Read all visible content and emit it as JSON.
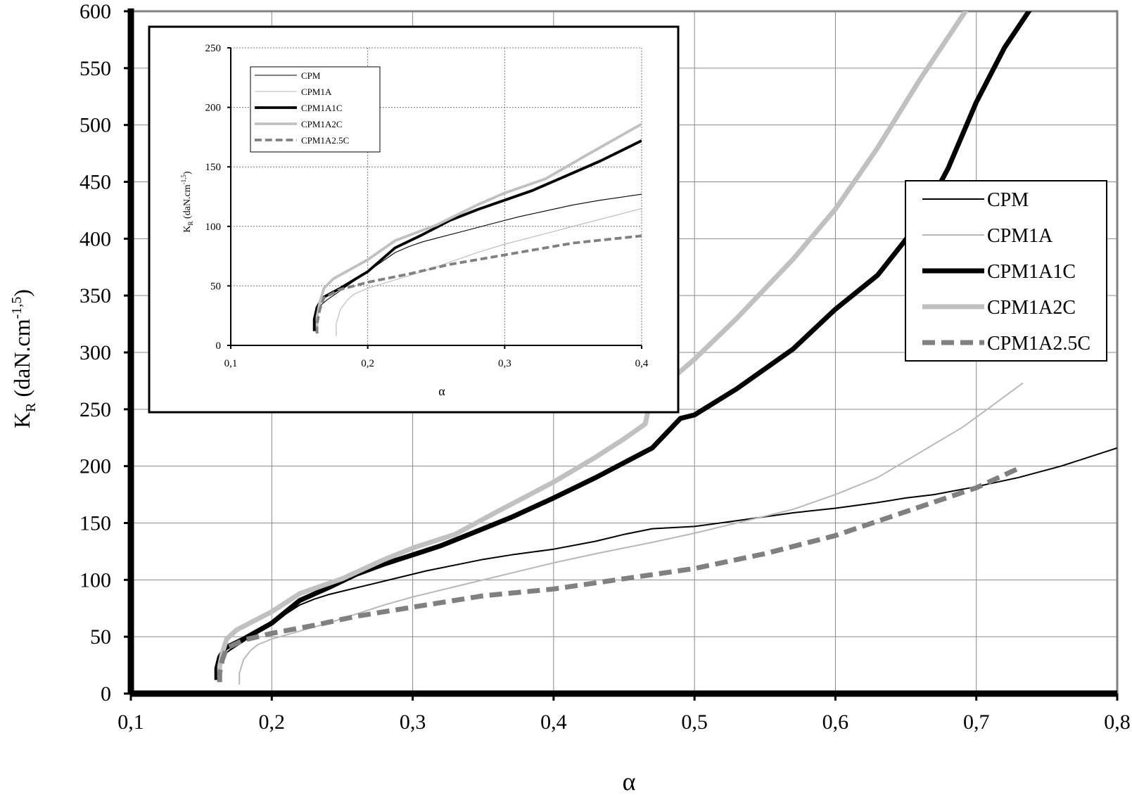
{
  "chart_data": [
    {
      "type": "line",
      "xlabel": "α",
      "ylabel_main": "K",
      "ylabel_sub": "R",
      "ylabel_rest": " (daN.cm",
      "ylabel_sup": "-1,5",
      "ylabel_close": ")",
      "xlim": [
        0.1,
        0.8
      ],
      "ylim": [
        0,
        600
      ],
      "xticks": [
        "0,1",
        "0,2",
        "0,3",
        "0,4",
        "0,5",
        "0,6",
        "0,7",
        "0,8"
      ],
      "yticks": [
        "0",
        "50",
        "100",
        "150",
        "200",
        "250",
        "300",
        "350",
        "400",
        "450",
        "500",
        "550",
        "600"
      ],
      "grid": true,
      "legend_position": "right",
      "series": [
        {
          "name": "CPM",
          "color": "#000000",
          "style": "thin",
          "points": [
            [
              0.162,
              12
            ],
            [
              0.162,
              20
            ],
            [
              0.164,
              28
            ],
            [
              0.166,
              34
            ],
            [
              0.17,
              38
            ],
            [
              0.18,
              46
            ],
            [
              0.19,
              54
            ],
            [
              0.2,
              62
            ],
            [
              0.21,
              70
            ],
            [
              0.22,
              78
            ],
            [
              0.23,
              83
            ],
            [
              0.24,
              87
            ],
            [
              0.25,
              90
            ],
            [
              0.27,
              96
            ],
            [
              0.29,
              102
            ],
            [
              0.31,
              108
            ],
            [
              0.33,
              113
            ],
            [
              0.35,
              118
            ],
            [
              0.37,
              122
            ],
            [
              0.4,
              127
            ],
            [
              0.43,
              134
            ],
            [
              0.45,
              140
            ],
            [
              0.47,
              145
            ],
            [
              0.5,
              147
            ],
            [
              0.53,
              152
            ],
            [
              0.57,
              159
            ],
            [
              0.6,
              163
            ],
            [
              0.63,
              168
            ],
            [
              0.65,
              172
            ],
            [
              0.67,
              175
            ],
            [
              0.7,
              182
            ],
            [
              0.73,
              190
            ],
            [
              0.76,
              200
            ],
            [
              0.8,
              216
            ]
          ]
        },
        {
          "name": "CPM1A",
          "color": "#b8b8b8",
          "style": "thin",
          "points": [
            [
              0.177,
              8
            ],
            [
              0.177,
              18
            ],
            [
              0.18,
              30
            ],
            [
              0.185,
              38
            ],
            [
              0.19,
              43
            ],
            [
              0.2,
              48
            ],
            [
              0.22,
              55
            ],
            [
              0.24,
              62
            ],
            [
              0.26,
              70
            ],
            [
              0.28,
              78
            ],
            [
              0.3,
              85
            ],
            [
              0.33,
              94
            ],
            [
              0.36,
              103
            ],
            [
              0.4,
              115
            ],
            [
              0.43,
              123
            ],
            [
              0.47,
              133
            ],
            [
              0.5,
              141
            ],
            [
              0.53,
              150
            ],
            [
              0.57,
              162
            ],
            [
              0.6,
              175
            ],
            [
              0.63,
              190
            ],
            [
              0.66,
              212
            ],
            [
              0.69,
              234
            ],
            [
              0.71,
              252
            ],
            [
              0.733,
              273
            ]
          ]
        },
        {
          "name": "CPM1A1C",
          "color": "#000000",
          "style": "thick",
          "points": [
            [
              0.161,
              12
            ],
            [
              0.161,
              22
            ],
            [
              0.163,
              32
            ],
            [
              0.167,
              40
            ],
            [
              0.18,
              48
            ],
            [
              0.2,
              62
            ],
            [
              0.22,
              82
            ],
            [
              0.24,
              93
            ],
            [
              0.26,
              105
            ],
            [
              0.28,
              114
            ],
            [
              0.3,
              122
            ],
            [
              0.32,
              130
            ],
            [
              0.35,
              145
            ],
            [
              0.37,
              155
            ],
            [
              0.4,
              172
            ],
            [
              0.43,
              190
            ],
            [
              0.45,
              203
            ],
            [
              0.47,
              216
            ],
            [
              0.49,
              242
            ],
            [
              0.5,
              245
            ],
            [
              0.53,
              268
            ],
            [
              0.57,
              303
            ],
            [
              0.6,
              338
            ],
            [
              0.63,
              368
            ],
            [
              0.66,
              415
            ],
            [
              0.68,
              462
            ],
            [
              0.7,
              520
            ],
            [
              0.72,
              568
            ],
            [
              0.74,
              605
            ]
          ]
        },
        {
          "name": "CPM1A2C",
          "color": "#c0c0c0",
          "style": "thick",
          "points": [
            [
              0.163,
              14
            ],
            [
              0.163,
              24
            ],
            [
              0.165,
              36
            ],
            [
              0.168,
              48
            ],
            [
              0.175,
              56
            ],
            [
              0.2,
              72
            ],
            [
              0.22,
              88
            ],
            [
              0.25,
              101
            ],
            [
              0.28,
              118
            ],
            [
              0.3,
              128
            ],
            [
              0.33,
              140
            ],
            [
              0.36,
              160
            ],
            [
              0.4,
              186
            ],
            [
              0.43,
              208
            ],
            [
              0.45,
              224
            ],
            [
              0.465,
              237
            ],
            [
              0.467,
              248
            ],
            [
              0.47,
              262
            ],
            [
              0.5,
              294
            ],
            [
              0.53,
              330
            ],
            [
              0.57,
              382
            ],
            [
              0.6,
              426
            ],
            [
              0.63,
              480
            ],
            [
              0.66,
              540
            ],
            [
              0.695,
              605
            ]
          ]
        },
        {
          "name": "CPM1A2.5C",
          "color": "#808080",
          "style": "dashed",
          "points": [
            [
              0.163,
              10
            ],
            [
              0.163,
              18
            ],
            [
              0.165,
              30
            ],
            [
              0.168,
              40
            ],
            [
              0.18,
              47
            ],
            [
              0.2,
              53
            ],
            [
              0.23,
              60
            ],
            [
              0.26,
              68
            ],
            [
              0.3,
              76
            ],
            [
              0.35,
              86
            ],
            [
              0.4,
              92
            ],
            [
              0.45,
              101
            ],
            [
              0.5,
              110
            ],
            [
              0.55,
              123
            ],
            [
              0.6,
              139
            ],
            [
              0.65,
              160
            ],
            [
              0.7,
              181
            ],
            [
              0.73,
              198
            ]
          ]
        }
      ]
    },
    {
      "type": "line",
      "xlabel": "α",
      "ylabel_main": "K",
      "ylabel_sub": "R",
      "ylabel_rest": " (daN.cm",
      "ylabel_sup": "-1,5",
      "ylabel_close": ")",
      "xlim": [
        0.1,
        0.4
      ],
      "ylim": [
        0,
        250
      ],
      "xticks": [
        "0,1",
        "0,2",
        "0,3",
        "0,4"
      ],
      "yticks": [
        "0",
        "50",
        "100",
        "150",
        "200",
        "250"
      ],
      "grid": true,
      "legend_position": "top-left",
      "series_names": [
        "CPM",
        "CPM1A",
        "CPM1A1C",
        "CPM1A2C",
        "CPM1A2.5C"
      ]
    }
  ]
}
